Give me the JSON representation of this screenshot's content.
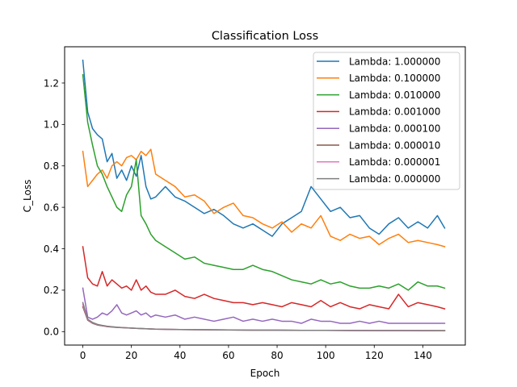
{
  "chart_data": {
    "type": "line",
    "title": "Classification Loss",
    "xlabel": "Epoch",
    "ylabel": "C_Loss",
    "xlim": [
      -7.5,
      157.5
    ],
    "ylim": [
      -0.065,
      1.375
    ],
    "xticks": [
      0,
      20,
      40,
      60,
      80,
      100,
      120,
      140
    ],
    "yticks": [
      0.0,
      0.2,
      0.4,
      0.6,
      0.8,
      1.0,
      1.2
    ],
    "xtick_labels": [
      "0",
      "20",
      "40",
      "60",
      "80",
      "100",
      "120",
      "140"
    ],
    "ytick_labels": [
      "0.0",
      "0.2",
      "0.4",
      "0.6",
      "0.8",
      "1.0",
      "1.2"
    ],
    "grid": false,
    "legend_position": "top-right",
    "series": [
      {
        "name": "Lambda: 1.000000",
        "color": "#1f77b4",
        "x": [
          0,
          2,
          4,
          6,
          8,
          10,
          12,
          14,
          16,
          18,
          20,
          22,
          24,
          26,
          28,
          30,
          34,
          38,
          42,
          46,
          50,
          54,
          58,
          62,
          66,
          70,
          74,
          78,
          82,
          86,
          90,
          94,
          98,
          102,
          106,
          110,
          114,
          118,
          122,
          126,
          130,
          134,
          138,
          142,
          146,
          149
        ],
        "y": [
          1.31,
          1.06,
          0.98,
          0.95,
          0.93,
          0.82,
          0.86,
          0.74,
          0.78,
          0.73,
          0.8,
          0.75,
          0.85,
          0.7,
          0.64,
          0.65,
          0.7,
          0.65,
          0.63,
          0.6,
          0.57,
          0.59,
          0.56,
          0.52,
          0.5,
          0.52,
          0.49,
          0.46,
          0.52,
          0.55,
          0.58,
          0.7,
          0.64,
          0.58,
          0.6,
          0.55,
          0.56,
          0.5,
          0.47,
          0.52,
          0.55,
          0.5,
          0.53,
          0.5,
          0.56,
          0.5
        ]
      },
      {
        "name": "Lambda: 0.100000",
        "color": "#ff7f0e",
        "x": [
          0,
          2,
          4,
          6,
          8,
          10,
          12,
          14,
          16,
          18,
          20,
          22,
          24,
          26,
          28,
          30,
          34,
          38,
          42,
          46,
          50,
          54,
          58,
          62,
          66,
          70,
          74,
          78,
          82,
          86,
          90,
          94,
          98,
          102,
          106,
          110,
          114,
          118,
          122,
          126,
          130,
          134,
          138,
          142,
          146,
          149
        ],
        "y": [
          0.87,
          0.7,
          0.73,
          0.76,
          0.78,
          0.74,
          0.8,
          0.82,
          0.8,
          0.84,
          0.85,
          0.83,
          0.87,
          0.85,
          0.88,
          0.76,
          0.73,
          0.7,
          0.65,
          0.66,
          0.63,
          0.57,
          0.6,
          0.62,
          0.56,
          0.55,
          0.52,
          0.5,
          0.53,
          0.48,
          0.52,
          0.5,
          0.56,
          0.46,
          0.44,
          0.47,
          0.45,
          0.46,
          0.42,
          0.45,
          0.47,
          0.43,
          0.44,
          0.43,
          0.42,
          0.41
        ]
      },
      {
        "name": "Lambda: 0.010000",
        "color": "#2ca02c",
        "x": [
          0,
          2,
          4,
          6,
          8,
          10,
          12,
          14,
          16,
          18,
          20,
          22,
          24,
          26,
          28,
          30,
          34,
          38,
          42,
          46,
          50,
          54,
          58,
          62,
          66,
          70,
          74,
          78,
          82,
          86,
          90,
          94,
          98,
          102,
          106,
          110,
          114,
          118,
          122,
          126,
          130,
          134,
          138,
          142,
          146,
          149
        ],
        "y": [
          1.24,
          1.01,
          0.9,
          0.8,
          0.76,
          0.7,
          0.65,
          0.6,
          0.58,
          0.66,
          0.7,
          0.83,
          0.56,
          0.52,
          0.47,
          0.44,
          0.41,
          0.38,
          0.35,
          0.36,
          0.33,
          0.32,
          0.31,
          0.3,
          0.3,
          0.32,
          0.3,
          0.29,
          0.27,
          0.25,
          0.24,
          0.23,
          0.25,
          0.23,
          0.24,
          0.22,
          0.21,
          0.21,
          0.22,
          0.21,
          0.23,
          0.2,
          0.24,
          0.22,
          0.22,
          0.21
        ]
      },
      {
        "name": "Lambda: 0.001000",
        "color": "#d62728",
        "x": [
          0,
          2,
          4,
          6,
          8,
          10,
          12,
          14,
          16,
          18,
          20,
          22,
          24,
          26,
          28,
          30,
          34,
          38,
          42,
          46,
          50,
          54,
          58,
          62,
          66,
          70,
          74,
          78,
          82,
          86,
          90,
          94,
          98,
          102,
          106,
          110,
          114,
          118,
          122,
          126,
          130,
          134,
          138,
          142,
          146,
          149
        ],
        "y": [
          0.41,
          0.26,
          0.23,
          0.22,
          0.29,
          0.22,
          0.25,
          0.23,
          0.21,
          0.22,
          0.2,
          0.25,
          0.2,
          0.22,
          0.19,
          0.18,
          0.18,
          0.2,
          0.17,
          0.16,
          0.18,
          0.16,
          0.15,
          0.14,
          0.14,
          0.13,
          0.14,
          0.13,
          0.12,
          0.14,
          0.13,
          0.12,
          0.15,
          0.12,
          0.14,
          0.12,
          0.11,
          0.13,
          0.12,
          0.11,
          0.18,
          0.12,
          0.14,
          0.13,
          0.12,
          0.11
        ]
      },
      {
        "name": "Lambda: 0.000100",
        "color": "#9467bd",
        "x": [
          0,
          2,
          4,
          6,
          8,
          10,
          12,
          14,
          16,
          18,
          20,
          22,
          24,
          26,
          28,
          30,
          34,
          38,
          42,
          46,
          50,
          54,
          58,
          62,
          66,
          70,
          74,
          78,
          82,
          86,
          90,
          94,
          98,
          102,
          106,
          110,
          114,
          118,
          122,
          126,
          130,
          134,
          138,
          142,
          146,
          149
        ],
        "y": [
          0.21,
          0.07,
          0.06,
          0.07,
          0.09,
          0.08,
          0.1,
          0.13,
          0.09,
          0.08,
          0.09,
          0.1,
          0.08,
          0.09,
          0.07,
          0.08,
          0.07,
          0.08,
          0.06,
          0.07,
          0.06,
          0.05,
          0.06,
          0.07,
          0.05,
          0.06,
          0.05,
          0.06,
          0.05,
          0.05,
          0.04,
          0.06,
          0.05,
          0.05,
          0.04,
          0.04,
          0.05,
          0.04,
          0.05,
          0.04,
          0.04,
          0.04,
          0.04,
          0.04,
          0.04,
          0.04
        ]
      },
      {
        "name": "Lambda: 0.000010",
        "color": "#8c564b",
        "x": [
          0,
          2,
          4,
          6,
          8,
          10,
          14,
          18,
          22,
          26,
          30,
          40,
          50,
          60,
          70,
          80,
          90,
          100,
          110,
          120,
          130,
          140,
          149
        ],
        "y": [
          0.12,
          0.055,
          0.04,
          0.032,
          0.028,
          0.024,
          0.02,
          0.018,
          0.016,
          0.014,
          0.012,
          0.01,
          0.009,
          0.008,
          0.007,
          0.007,
          0.006,
          0.006,
          0.006,
          0.005,
          0.005,
          0.005,
          0.005
        ]
      },
      {
        "name": "Lambda: 0.000001",
        "color": "#e377c2",
        "x": [
          0,
          2,
          4,
          6,
          8,
          10,
          14,
          18,
          22,
          26,
          30,
          40,
          50,
          60,
          70,
          80,
          90,
          100,
          110,
          120,
          130,
          140,
          149
        ],
        "y": [
          0.13,
          0.058,
          0.042,
          0.034,
          0.029,
          0.025,
          0.021,
          0.018,
          0.016,
          0.014,
          0.012,
          0.01,
          0.009,
          0.008,
          0.007,
          0.007,
          0.006,
          0.006,
          0.005,
          0.005,
          0.005,
          0.005,
          0.004
        ]
      },
      {
        "name": "Lambda: 0.000000",
        "color": "#7f7f7f",
        "x": [
          0,
          2,
          4,
          6,
          8,
          10,
          14,
          18,
          22,
          26,
          30,
          40,
          50,
          60,
          70,
          80,
          90,
          100,
          110,
          120,
          130,
          140,
          149
        ],
        "y": [
          0.14,
          0.06,
          0.044,
          0.035,
          0.03,
          0.026,
          0.021,
          0.018,
          0.016,
          0.014,
          0.012,
          0.01,
          0.009,
          0.008,
          0.007,
          0.007,
          0.006,
          0.006,
          0.005,
          0.005,
          0.005,
          0.004,
          0.004
        ]
      }
    ]
  }
}
